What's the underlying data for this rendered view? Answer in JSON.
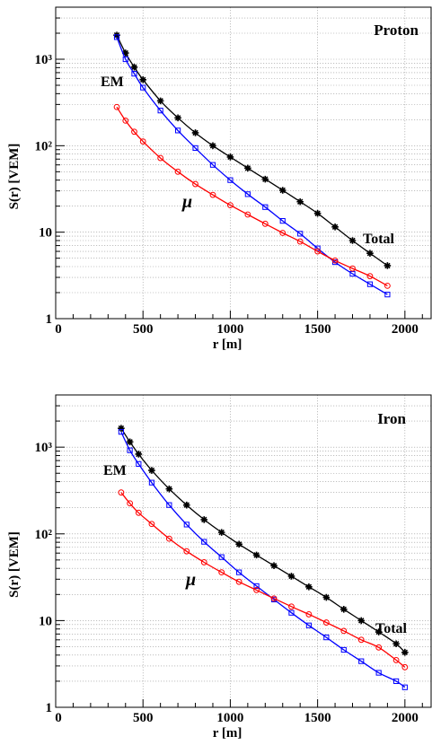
{
  "chart_data": [
    {
      "type": "scatter",
      "title": "Proton",
      "xlabel": "r [m]",
      "ylabel": "S(r) [VEM]",
      "xlim": [
        0,
        2150
      ],
      "ylim": [
        1,
        4000
      ],
      "yscale": "log",
      "grid": true,
      "x_ticks": [
        0,
        500,
        1000,
        1500,
        2000
      ],
      "y_ticks": [
        {
          "value": 1,
          "label": "1"
        },
        {
          "value": 10,
          "label": "10"
        },
        {
          "value": 100,
          "label": "10²"
        },
        {
          "value": 1000,
          "label": "10³"
        }
      ],
      "annotations": [
        {
          "text": "EM",
          "series": "em"
        },
        {
          "text": "μ",
          "series": "mu"
        },
        {
          "text": "Total",
          "series": "total"
        }
      ],
      "series": [
        {
          "id": "total",
          "color": "#000000",
          "marker": "star",
          "x": [
            350,
            400,
            450,
            500,
            600,
            700,
            800,
            900,
            1000,
            1100,
            1200,
            1300,
            1400,
            1500,
            1600,
            1700,
            1800,
            1900
          ],
          "values": [
            1900,
            1180,
            810,
            580,
            330,
            210,
            141,
            100,
            74,
            55,
            41,
            30.5,
            22.5,
            16.5,
            11.5,
            8,
            5.7,
            4.1
          ]
        },
        {
          "id": "em",
          "color": "#0000ff",
          "marker": "square",
          "x": [
            350,
            400,
            450,
            500,
            600,
            700,
            800,
            900,
            1000,
            1100,
            1200,
            1300,
            1400,
            1500,
            1600,
            1700,
            1800,
            1900
          ],
          "values": [
            1800,
            1000,
            680,
            470,
            255,
            150,
            94,
            60,
            40,
            27.5,
            19.5,
            13.5,
            9.6,
            6.5,
            4.5,
            3.3,
            2.5,
            1.9
          ]
        },
        {
          "id": "mu",
          "color": "#ff0000",
          "marker": "circle",
          "x": [
            350,
            400,
            450,
            500,
            600,
            700,
            800,
            900,
            1000,
            1100,
            1200,
            1300,
            1400,
            1500,
            1600,
            1700,
            1800,
            1900
          ],
          "values": [
            280,
            195,
            145,
            112,
            72,
            50,
            36,
            27,
            20.5,
            16,
            12.5,
            9.8,
            7.8,
            6,
            4.7,
            3.8,
            3.1,
            2.4
          ]
        }
      ]
    },
    {
      "type": "scatter",
      "title": "Iron",
      "xlabel": "r [m]",
      "ylabel": "S(r) [VEM]",
      "xlim": [
        0,
        2150
      ],
      "ylim": [
        1,
        4000
      ],
      "yscale": "log",
      "grid": true,
      "x_ticks": [
        0,
        500,
        1000,
        1500,
        2000
      ],
      "y_ticks": [
        {
          "value": 1,
          "label": "1"
        },
        {
          "value": 10,
          "label": "10"
        },
        {
          "value": 100,
          "label": "10²"
        },
        {
          "value": 1000,
          "label": "10³"
        }
      ],
      "annotations": [
        {
          "text": "EM",
          "series": "em"
        },
        {
          "text": "μ",
          "series": "mu"
        },
        {
          "text": "Total",
          "series": "total"
        }
      ],
      "series": [
        {
          "id": "total",
          "color": "#000000",
          "marker": "star",
          "x": [
            375,
            425,
            475,
            550,
            650,
            750,
            850,
            950,
            1050,
            1150,
            1250,
            1350,
            1450,
            1550,
            1650,
            1750,
            1850,
            1950,
            2000
          ],
          "values": [
            1650,
            1150,
            830,
            540,
            330,
            215,
            146,
            104,
            76,
            57,
            43,
            32.5,
            24.5,
            18.5,
            13.5,
            10,
            7.4,
            5.4,
            4.3
          ]
        },
        {
          "id": "em",
          "color": "#0000ff",
          "marker": "square",
          "x": [
            375,
            425,
            475,
            550,
            650,
            750,
            850,
            950,
            1050,
            1150,
            1250,
            1350,
            1450,
            1550,
            1650,
            1750,
            1850,
            1950,
            2000
          ],
          "values": [
            1500,
            920,
            640,
            390,
            215,
            128,
            81,
            54,
            36,
            25,
            17.5,
            12.3,
            8.8,
            6.4,
            4.6,
            3.4,
            2.5,
            2,
            1.7
          ]
        },
        {
          "id": "mu",
          "color": "#ff0000",
          "marker": "circle",
          "x": [
            375,
            425,
            475,
            550,
            650,
            750,
            850,
            950,
            1050,
            1150,
            1250,
            1350,
            1450,
            1550,
            1650,
            1750,
            1850,
            1950,
            2000
          ],
          "values": [
            300,
            225,
            175,
            130,
            88,
            63,
            47,
            36,
            28,
            22.5,
            18,
            14.5,
            11.8,
            9.5,
            7.6,
            6,
            4.9,
            3.5,
            2.9
          ]
        }
      ]
    }
  ]
}
